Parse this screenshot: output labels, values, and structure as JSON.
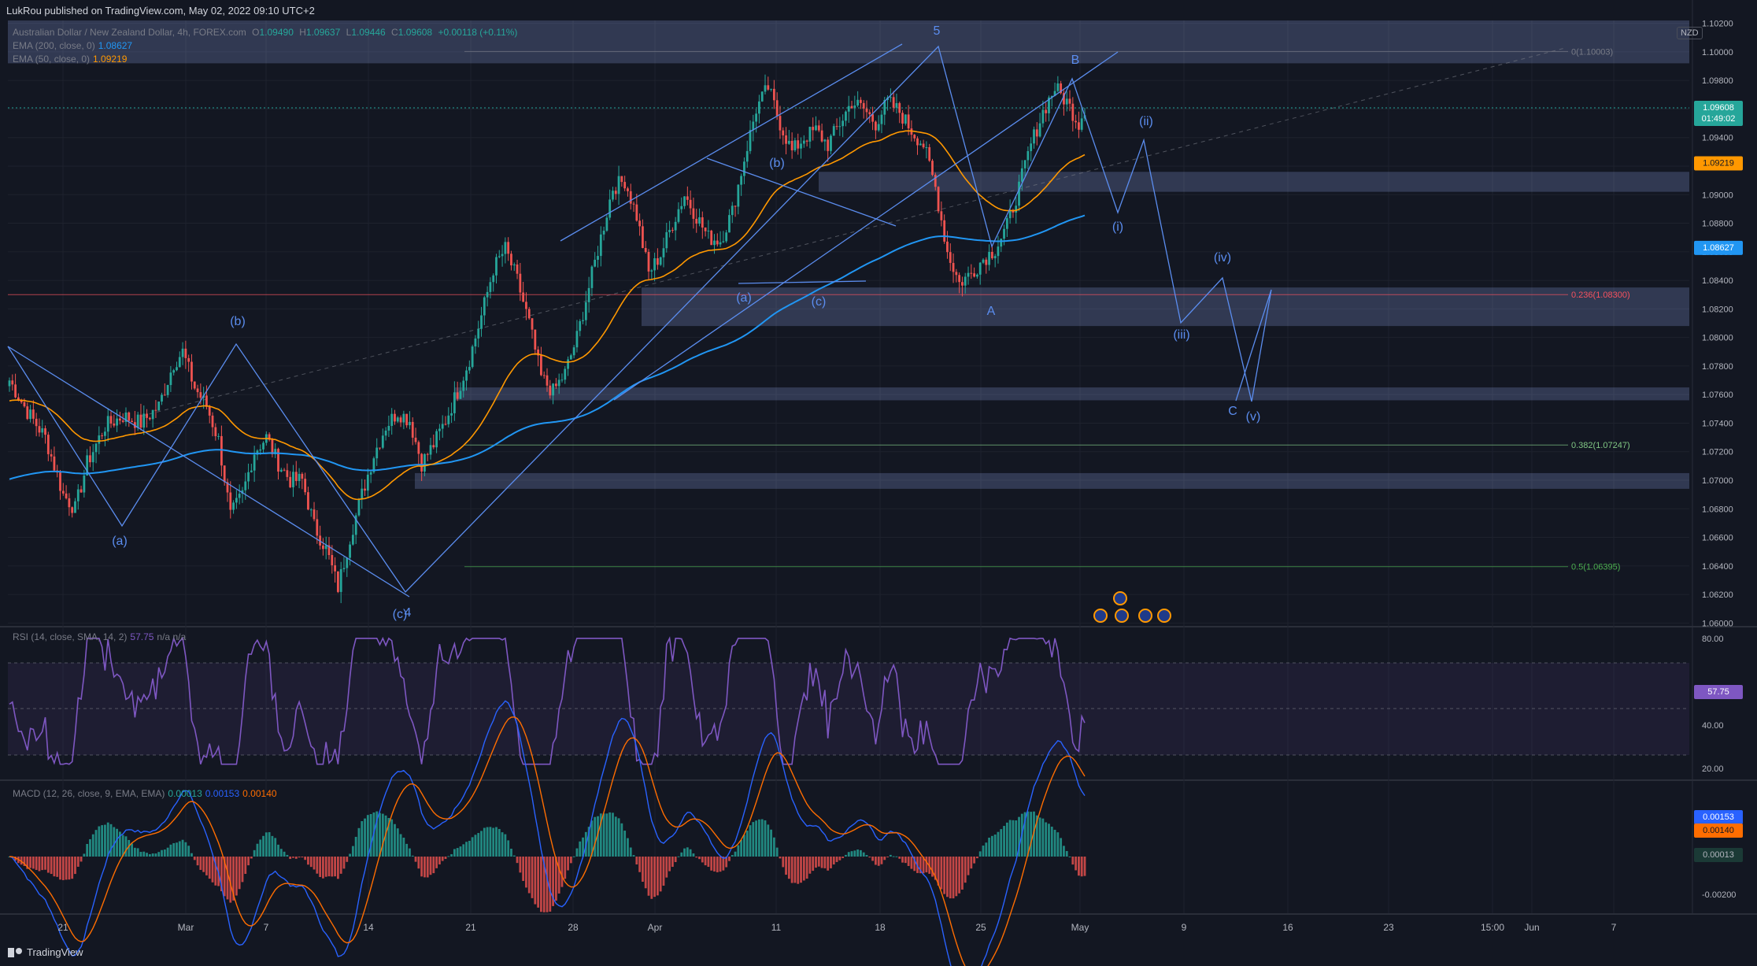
{
  "header": {
    "published": "LukRou published on TradingView.com, May 02, 2022 09:10 UTC+2"
  },
  "legend": {
    "symbol": "Australian Dollar / New Zealand Dollar, 4h, FOREX.com",
    "o_label": "O",
    "o": "1.09490",
    "h_label": "H",
    "h": "1.09637",
    "l_label": "L",
    "l": "1.09446",
    "c_label": "C",
    "c": "1.09608",
    "change": "+0.00118 (+0.11%)",
    "ema200_label": "EMA (200, close, 0)",
    "ema200": "1.08627",
    "ema50_label": "EMA (50, close, 0)",
    "ema50": "1.09219",
    "rsi_label": "RSI (14, close, SMA, 14, 2)",
    "rsi": "57.75",
    "rsi_na": "n/a n/a",
    "macd_label": "MACD (12, 26, close, 9, EMA, EMA)",
    "macd_hist": "0.00013",
    "macd_line": "0.00153",
    "macd_signal": "0.00140"
  },
  "currency": "NZD",
  "footer": {
    "brand": "TradingView"
  },
  "colors": {
    "bg": "#131722",
    "grid": "#1e222d",
    "up": "#26a69a",
    "down": "#ef5350",
    "ema200": "#2196f3",
    "ema50": "#ff9800",
    "rsi": "#7e57c2",
    "macd": "#2962ff",
    "signal": "#ff6d00",
    "wave": "#5b8def",
    "zone": "#9fb7ff"
  },
  "chart_data": {
    "type": "candlestick",
    "symbol": "AUDNZD",
    "timeframe": "4h",
    "price_axis": {
      "ticks": [
        "1.06000",
        "1.06200",
        "1.06400",
        "1.06600",
        "1.06800",
        "1.07000",
        "1.07200",
        "1.07400",
        "1.07600",
        "1.07800",
        "1.08000",
        "1.08200",
        "1.08400",
        "1.08600",
        "1.08800",
        "1.09000",
        "1.09200",
        "1.09400",
        "1.09600",
        "1.09800",
        "1.10000",
        "1.10200"
      ],
      "range": [
        1.0598,
        1.1022
      ]
    },
    "time_axis": [
      "21",
      "Mar",
      "7",
      "14",
      "21",
      "28",
      "Apr",
      "11",
      "18",
      "25",
      "May",
      "9",
      "16",
      "23",
      "15:00",
      "Jun",
      "7"
    ],
    "last_price": {
      "value": "1.09608",
      "countdown": "01:49:02"
    },
    "ema200_last": "1.08627",
    "ema50_last": "1.09219",
    "fib_levels": [
      {
        "label": "0(1.10003)",
        "value": 1.10003
      },
      {
        "label": "0.236(1.08300)",
        "value": 1.083
      },
      {
        "label": "0.382(1.07247)",
        "value": 1.07247
      },
      {
        "label": "0.5(1.06395)",
        "value": 1.06395
      }
    ],
    "zones": [
      {
        "from": 1.0992,
        "to": 1.1022
      },
      {
        "from": 1.0902,
        "to": 1.0916
      },
      {
        "from": 1.0808,
        "to": 1.0835
      },
      {
        "from": 1.0756,
        "to": 1.0765
      },
      {
        "from": 1.0694,
        "to": 1.0705
      }
    ],
    "wave_labels": [
      "(a)",
      "(b)",
      "(c)",
      "4",
      "(a)",
      "(b)",
      "(c)",
      "5",
      "A",
      "B",
      "(i)",
      "(ii)",
      "(iii)",
      "(iv)",
      "C",
      "(v)"
    ],
    "close_path": [
      [
        0,
        1.077
      ],
      [
        6,
        1.0748
      ],
      [
        12,
        1.073
      ],
      [
        18,
        1.069
      ],
      [
        22,
        1.068
      ],
      [
        26,
        1.0712
      ],
      [
        32,
        1.0738
      ],
      [
        38,
        1.0745
      ],
      [
        44,
        1.074
      ],
      [
        50,
        1.0752
      ],
      [
        55,
        1.0782
      ],
      [
        58,
        1.079
      ],
      [
        62,
        1.0765
      ],
      [
        66,
        1.0752
      ],
      [
        70,
        1.0728
      ],
      [
        74,
        1.0675
      ],
      [
        78,
        1.069
      ],
      [
        82,
        1.072
      ],
      [
        86,
        1.073
      ],
      [
        90,
        1.0712
      ],
      [
        94,
        1.07
      ],
      [
        98,
        1.07
      ],
      [
        102,
        1.0668
      ],
      [
        106,
        1.0652
      ],
      [
        110,
        1.0625
      ],
      [
        114,
        1.066
      ],
      [
        118,
        1.069
      ],
      [
        122,
        1.0718
      ],
      [
        126,
        1.0738
      ],
      [
        130,
        1.0748
      ],
      [
        134,
        1.0742
      ],
      [
        138,
        1.0712
      ],
      [
        142,
        1.0725
      ],
      [
        146,
        1.0742
      ],
      [
        150,
        1.0762
      ],
      [
        154,
        1.0785
      ],
      [
        158,
        1.0815
      ],
      [
        162,
        1.0848
      ],
      [
        166,
        1.0862
      ],
      [
        170,
        1.084
      ],
      [
        174,
        1.081
      ],
      [
        178,
        1.0772
      ],
      [
        182,
        1.0762
      ],
      [
        186,
        1.0775
      ],
      [
        190,
        1.08
      ],
      [
        194,
        1.0835
      ],
      [
        198,
        1.087
      ],
      [
        202,
        1.0905
      ],
      [
        206,
        1.091
      ],
      [
        210,
        1.0885
      ],
      [
        214,
        1.0845
      ],
      [
        218,
        1.0858
      ],
      [
        222,
        1.088
      ],
      [
        226,
        1.09
      ],
      [
        230,
        1.0885
      ],
      [
        234,
        1.087
      ],
      [
        238,
        1.0868
      ],
      [
        242,
        1.0888
      ],
      [
        246,
        1.0925
      ],
      [
        250,
        1.096
      ],
      [
        254,
        1.0975
      ],
      [
        258,
        1.095
      ],
      [
        262,
        1.093
      ],
      [
        266,
        1.094
      ],
      [
        270,
        1.0945
      ],
      [
        274,
        1.0935
      ],
      [
        278,
        1.095
      ],
      [
        282,
        1.0965
      ],
      [
        286,
        1.096
      ],
      [
        290,
        1.095
      ],
      [
        294,
        1.0965
      ],
      [
        298,
        1.0958
      ],
      [
        302,
        1.0945
      ],
      [
        306,
        1.0935
      ],
      [
        310,
        1.0905
      ],
      [
        314,
        1.086
      ],
      [
        318,
        1.0838
      ],
      [
        322,
        1.0845
      ],
      [
        326,
        1.0855
      ],
      [
        330,
        1.0862
      ],
      [
        334,
        1.0878
      ],
      [
        338,
        1.0905
      ],
      [
        342,
        1.0935
      ],
      [
        346,
        1.0958
      ],
      [
        350,
        1.0975
      ],
      [
        354,
        1.0965
      ],
      [
        358,
        1.095
      ],
      [
        360,
        1.0961
      ]
    ],
    "rsi_axis": [
      "80.00",
      "40.00",
      "20.00"
    ],
    "macd_axis": [
      "-0.00200"
    ]
  }
}
